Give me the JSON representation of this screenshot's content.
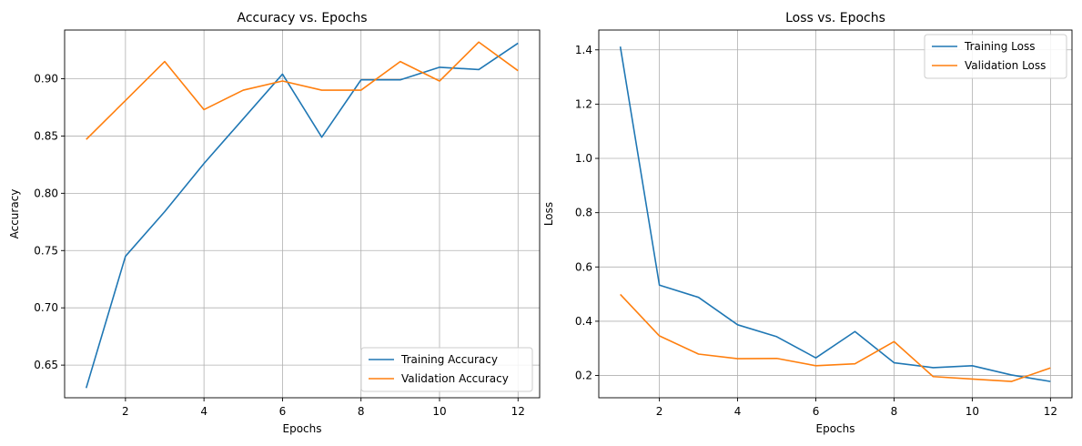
{
  "chart_data": [
    {
      "type": "line",
      "title": "Accuracy vs. Epochs",
      "xlabel": "Epochs",
      "ylabel": "Accuracy",
      "x": [
        1,
        2,
        3,
        4,
        5,
        6,
        7,
        8,
        9,
        10,
        11,
        12
      ],
      "xlim": [
        0.45,
        12.55
      ],
      "ylim": [
        0.6215,
        0.9425
      ],
      "xticks": [
        2,
        4,
        6,
        8,
        10,
        12
      ],
      "yticks": [
        0.65,
        0.7,
        0.75,
        0.8,
        0.85,
        0.9
      ],
      "xtick_labels": [
        "2",
        "4",
        "6",
        "8",
        "10",
        "12"
      ],
      "ytick_labels": [
        "0.65",
        "0.70",
        "0.75",
        "0.80",
        "0.85",
        "0.90"
      ],
      "grid": true,
      "legend_position": "lower-right",
      "series": [
        {
          "name": "Training Accuracy",
          "color": "#1f77b4",
          "values": [
            0.63,
            0.745,
            0.784,
            0.826,
            0.865,
            0.904,
            0.849,
            0.899,
            0.899,
            0.91,
            0.908,
            0.931
          ]
        },
        {
          "name": "Validation Accuracy",
          "color": "#ff7f0e",
          "values": [
            0.847,
            0.881,
            0.915,
            0.873,
            0.89,
            0.898,
            0.89,
            0.89,
            0.915,
            0.898,
            0.932,
            0.907
          ]
        }
      ]
    },
    {
      "type": "line",
      "title": "Loss vs. Epochs",
      "xlabel": "Epochs",
      "ylabel": "Loss",
      "x": [
        1,
        2,
        3,
        4,
        5,
        6,
        7,
        8,
        9,
        10,
        11,
        12
      ],
      "xlim": [
        0.45,
        12.55
      ],
      "ylim": [
        0.118,
        1.473
      ],
      "xticks": [
        2,
        4,
        6,
        8,
        10,
        12
      ],
      "yticks": [
        0.2,
        0.4,
        0.6,
        0.8,
        1.0,
        1.2,
        1.4
      ],
      "xtick_labels": [
        "2",
        "4",
        "6",
        "8",
        "10",
        "12"
      ],
      "ytick_labels": [
        "0.2",
        "0.4",
        "0.6",
        "0.8",
        "1.0",
        "1.2",
        "1.4"
      ],
      "grid": true,
      "legend_position": "upper-right",
      "series": [
        {
          "name": "Training Loss",
          "color": "#1f77b4",
          "values": [
            1.412,
            0.533,
            0.488,
            0.387,
            0.343,
            0.265,
            0.362,
            0.247,
            0.229,
            0.236,
            0.202,
            0.178
          ]
        },
        {
          "name": "Validation Loss",
          "color": "#ff7f0e",
          "values": [
            0.499,
            0.346,
            0.279,
            0.262,
            0.263,
            0.236,
            0.243,
            0.325,
            0.196,
            0.187,
            0.178,
            0.228
          ]
        }
      ]
    }
  ]
}
